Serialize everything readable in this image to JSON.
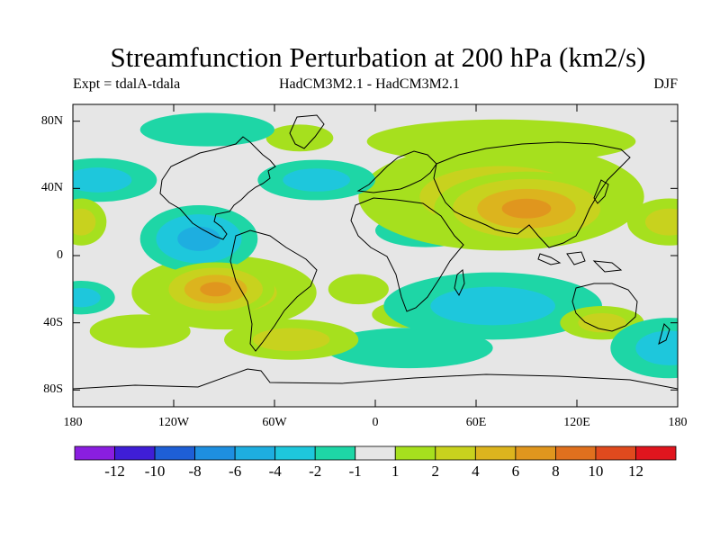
{
  "title": "Streamfunction Perturbation at 200 hPa (km2/s)",
  "subtitle_left": "Expt = tdalA-tdala",
  "subtitle_center": "HadCM3M2.1 - HadCM3M2.1",
  "subtitle_right": "DJF",
  "map": {
    "projection": "cylindrical equidistant",
    "lon_range": [
      -180,
      180
    ],
    "lat_range": [
      -90,
      90
    ],
    "x_ticks": [
      {
        "lon": -180,
        "label": "180"
      },
      {
        "lon": -120,
        "label": "120W"
      },
      {
        "lon": -60,
        "label": "60W"
      },
      {
        "lon": 0,
        "label": "0"
      },
      {
        "lon": 60,
        "label": "60E"
      },
      {
        "lon": 120,
        "label": "120E"
      },
      {
        "lon": 180,
        "label": "180"
      }
    ],
    "y_ticks": [
      {
        "lat": 80,
        "label": "80N"
      },
      {
        "lat": 40,
        "label": "40N"
      },
      {
        "lat": 0,
        "label": "0"
      },
      {
        "lat": -40,
        "label": "40S"
      },
      {
        "lat": -80,
        "label": "80S"
      }
    ],
    "background_color": "#e6e6e6",
    "features": [
      {
        "name": "asia-high",
        "lon": 90,
        "lat": 28,
        "rx": 55,
        "ry": 22,
        "value": 8
      },
      {
        "name": "asia-ring",
        "lon": 75,
        "lat": 35,
        "rx": 85,
        "ry": 32,
        "value": 3
      },
      {
        "name": "n-eurasia-band",
        "lon": 75,
        "lat": 68,
        "rx": 80,
        "ry": 13,
        "value": 1.5
      },
      {
        "name": "south-pacific-high",
        "lon": -95,
        "lat": -20,
        "rx": 35,
        "ry": 16,
        "value": 8
      },
      {
        "name": "south-pacific-ring",
        "lon": -90,
        "lat": -22,
        "rx": 55,
        "ry": 22,
        "value": 3
      },
      {
        "name": "s-america-south",
        "lon": -50,
        "lat": -50,
        "rx": 40,
        "ry": 12,
        "value": 3
      },
      {
        "name": "s-atlantic",
        "lon": -10,
        "lat": -20,
        "rx": 18,
        "ry": 9,
        "value": 2
      },
      {
        "name": "s-africa",
        "lon": 20,
        "lat": -35,
        "rx": 22,
        "ry": 8,
        "value": 2
      },
      {
        "name": "s-indian-low",
        "lon": 70,
        "lat": -30,
        "rx": 65,
        "ry": 20,
        "value": -3
      },
      {
        "name": "s-ocean-low",
        "lon": 20,
        "lat": -55,
        "rx": 50,
        "ry": 12,
        "value": -2
      },
      {
        "name": "australia-high",
        "lon": 135,
        "lat": -40,
        "rx": 25,
        "ry": 10,
        "value": 3
      },
      {
        "name": "central-america-low",
        "lon": -105,
        "lat": 10,
        "rx": 35,
        "ry": 20,
        "value": -5
      },
      {
        "name": "north-atlantic-low",
        "lon": -35,
        "lat": 45,
        "rx": 35,
        "ry": 12,
        "value": -3
      },
      {
        "name": "west-pacific-low",
        "lon": -165,
        "lat": 45,
        "rx": 35,
        "ry": 13,
        "value": -3
      },
      {
        "name": "north-africa-low",
        "lon": 30,
        "lat": 15,
        "rx": 30,
        "ry": 10,
        "value": -2
      },
      {
        "name": "dateline-high-east",
        "lon": 175,
        "lat": 20,
        "rx": 25,
        "ry": 14,
        "value": 3
      },
      {
        "name": "dateline-high-west",
        "lon": -175,
        "lat": 20,
        "rx": 15,
        "ry": 14,
        "value": 3
      },
      {
        "name": "greenland-high",
        "lon": -45,
        "lat": 70,
        "rx": 20,
        "ry": 8,
        "value": 1.5
      },
      {
        "name": "canada-low",
        "lon": -100,
        "lat": 75,
        "rx": 40,
        "ry": 10,
        "value": -2
      },
      {
        "name": "sw-pacific-low-east",
        "lon": 175,
        "lat": -55,
        "rx": 35,
        "ry": 18,
        "value": -4
      },
      {
        "name": "sw-pacific-low-west",
        "lon": -175,
        "lat": -25,
        "rx": 20,
        "ry": 10,
        "value": -3
      },
      {
        "name": "pacific-high-east",
        "lon": -140,
        "lat": -45,
        "rx": 30,
        "ry": 10,
        "value": 2
      }
    ]
  },
  "colorbar": {
    "boundaries": [
      -14,
      -12,
      -10,
      -8,
      -6,
      -4,
      -2,
      -1,
      1,
      2,
      4,
      6,
      8,
      10,
      12,
      14
    ],
    "colors": [
      "#8a1ee0",
      "#3f1ed6",
      "#1e5fd6",
      "#1e8fe0",
      "#1eaee0",
      "#1ec7dc",
      "#1ed6a6",
      "#e6e6e6",
      "#a6e01e",
      "#c8d21e",
      "#dcb41e",
      "#e0961e",
      "#e0701e",
      "#e04a1e",
      "#e0151e"
    ],
    "labels": [
      "-12",
      "-10",
      "-8",
      "-6",
      "-4",
      "-2",
      "-1",
      "1",
      "2",
      "4",
      "6",
      "8",
      "10",
      "12"
    ]
  }
}
